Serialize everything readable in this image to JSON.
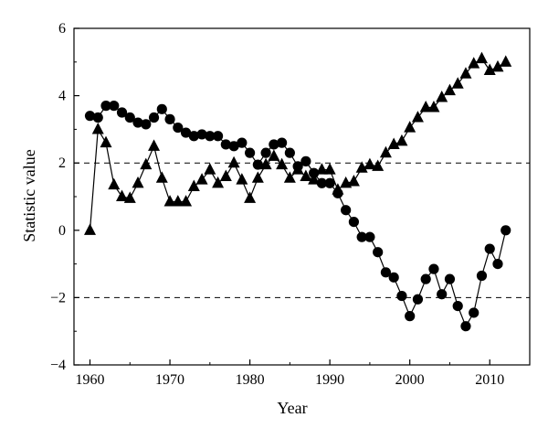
{
  "chart_data": {
    "type": "line",
    "xlabel": "Year",
    "ylabel": "Statistic value",
    "xlim": [
      1958,
      2015
    ],
    "ylim": [
      -4,
      6
    ],
    "xticks": [
      1960,
      1970,
      1980,
      1990,
      2000,
      2010
    ],
    "yticks": [
      -4,
      -2,
      0,
      2,
      4,
      6
    ],
    "reference_lines": [
      2,
      -2
    ],
    "grid": false,
    "legend": "none",
    "series": [
      {
        "marker": "circle",
        "x": [
          1960,
          1961,
          1962,
          1963,
          1964,
          1965,
          1966,
          1967,
          1968,
          1969,
          1970,
          1971,
          1972,
          1973,
          1974,
          1975,
          1976,
          1977,
          1978,
          1979,
          1980,
          1981,
          1982,
          1983,
          1984,
          1985,
          1986,
          1987,
          1988,
          1989,
          1990,
          1991,
          1992,
          1993,
          1994,
          1995,
          1996,
          1997,
          1998,
          1999,
          2000,
          2001,
          2002,
          2003,
          2004,
          2005,
          2006,
          2007,
          2008,
          2009,
          2010,
          2011,
          2012
        ],
        "y": [
          3.4,
          3.35,
          3.7,
          3.7,
          3.5,
          3.35,
          3.2,
          3.15,
          3.35,
          3.6,
          3.3,
          3.05,
          2.9,
          2.8,
          2.85,
          2.8,
          2.8,
          2.55,
          2.5,
          2.6,
          2.3,
          1.95,
          2.3,
          2.55,
          2.6,
          2.3,
          1.9,
          2.05,
          1.7,
          1.4,
          1.4,
          1.1,
          0.6,
          0.25,
          -0.2,
          -0.2,
          -0.65,
          -1.25,
          -1.4,
          -1.95,
          -2.55,
          -2.05,
          -1.45,
          -1.15,
          -1.9,
          -1.45,
          -2.25,
          -2.85,
          -2.45,
          -1.35,
          -0.55,
          -1.0,
          0.0
        ]
      },
      {
        "marker": "triangle",
        "x": [
          1960,
          1961,
          1962,
          1963,
          1964,
          1965,
          1966,
          1967,
          1968,
          1969,
          1970,
          1971,
          1972,
          1973,
          1974,
          1975,
          1976,
          1977,
          1978,
          1979,
          1980,
          1981,
          1982,
          1983,
          1984,
          1985,
          1986,
          1987,
          1988,
          1989,
          1990,
          1991,
          1992,
          1993,
          1994,
          1995,
          1996,
          1997,
          1998,
          1999,
          2000,
          2001,
          2002,
          2003,
          2004,
          2005,
          2006,
          2007,
          2008,
          2009,
          2010,
          2011,
          2012
        ],
        "y": [
          0.0,
          3.0,
          2.6,
          1.35,
          1.0,
          0.95,
          1.4,
          1.95,
          2.5,
          1.55,
          0.85,
          0.85,
          0.85,
          1.3,
          1.5,
          1.8,
          1.4,
          1.6,
          2.0,
          1.5,
          0.95,
          1.55,
          1.95,
          2.2,
          1.95,
          1.55,
          1.8,
          1.6,
          1.5,
          1.8,
          1.8,
          1.2,
          1.4,
          1.45,
          1.85,
          1.95,
          1.9,
          2.3,
          2.55,
          2.65,
          3.05,
          3.35,
          3.65,
          3.65,
          3.95,
          4.15,
          4.35,
          4.65,
          4.95,
          5.1,
          4.75,
          4.85,
          5.0
        ]
      }
    ]
  }
}
